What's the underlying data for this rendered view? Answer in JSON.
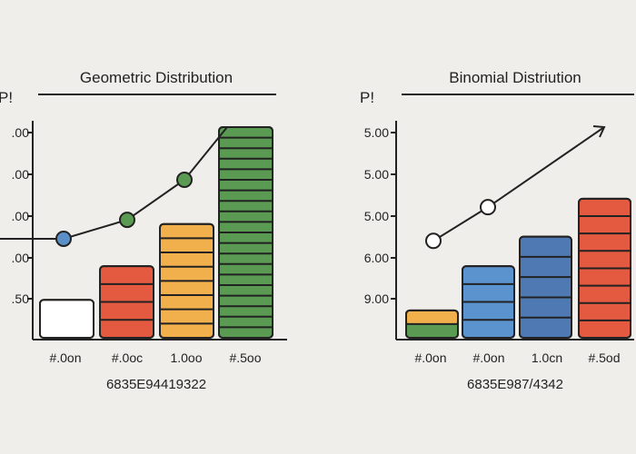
{
  "chart_data": [
    {
      "type": "bar",
      "title": "Geometric Distribution",
      "ylabel": "P!",
      "categories": [
        "#.0on",
        "#.0oc",
        "1.0oo",
        "#.5oo"
      ],
      "ytick_labels": [
        ".00",
        ".00",
        ".00",
        ".00",
        ".50"
      ],
      "ylim": [
        0,
        1.0
      ],
      "values": [
        0.18,
        0.34,
        0.54,
        1.0
      ],
      "segments": [
        1,
        4,
        8,
        20
      ],
      "top_segment_fill": [
        "#ffffff",
        null,
        null,
        null
      ],
      "bar_colors": [
        "#e45a40",
        "#e45a40",
        "#f2b04c",
        "#5a9a52"
      ],
      "line_values": [
        0.47,
        0.56,
        0.75
      ],
      "line_marker_colors": [
        "#5b8fc7",
        "#5a9a52",
        "#5a9a52"
      ],
      "caption": "6835E94419322",
      "grid": false,
      "legend": "none"
    },
    {
      "type": "bar",
      "title": "Binomial Distriution",
      "ylabel": "P!",
      "categories": [
        "#.0on",
        "#.0on",
        "1.0cn",
        "#.5od"
      ],
      "ytick_labels": [
        "5.00",
        "5.00",
        "5.00",
        "6.00",
        "9.00"
      ],
      "ylim": [
        0,
        1.0
      ],
      "values": [
        0.13,
        0.34,
        0.48,
        0.66
      ],
      "segments": [
        2,
        4,
        5,
        8
      ],
      "bar_colors": [
        "#5a9a52",
        "#5b93cf",
        "#4f79b3",
        "#e45a40"
      ],
      "bottom_segment_first_bar": "#5a9a52",
      "top_segment_first_bar": "#f2b04c",
      "line_values": [
        0.46,
        0.62
      ],
      "line_arrow_end": 1.0,
      "caption": "6835E987/4342",
      "grid": false,
      "legend": "none"
    }
  ]
}
